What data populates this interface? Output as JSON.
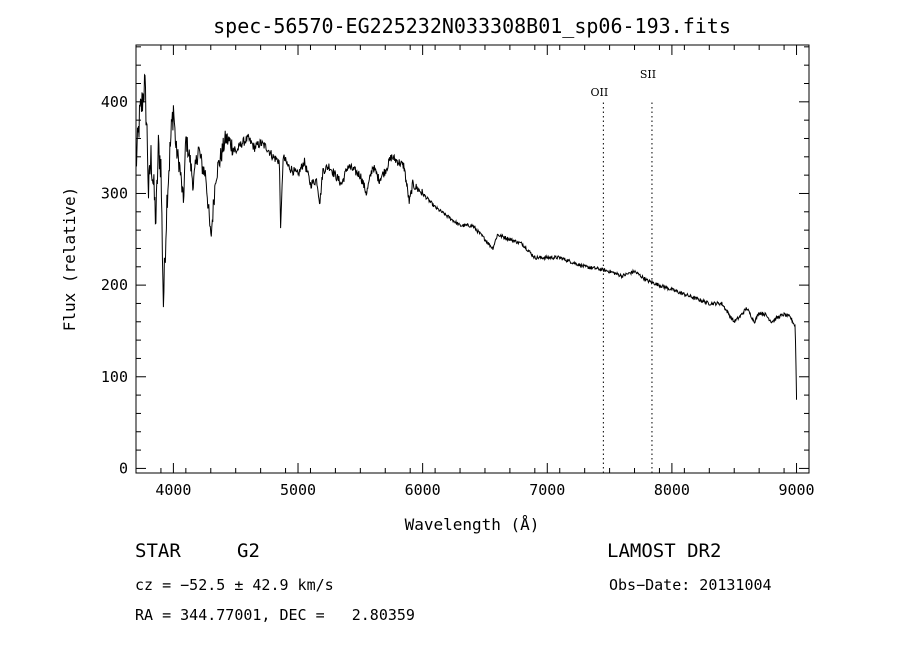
{
  "chart_data": {
    "type": "line",
    "title": "spec-56570-EG225232N033308B01_sp06-193.fits",
    "xlabel": "Wavelength (Å)",
    "ylabel": "Flux (relative)",
    "xlim": [
      3700,
      9100
    ],
    "ylim": [
      -5,
      462
    ],
    "xticks": [
      4000,
      5000,
      6000,
      7000,
      8000,
      9000
    ],
    "yticks": [
      0,
      100,
      200,
      300,
      400
    ],
    "grid": false,
    "line_color": "#000000",
    "series": [
      {
        "x": [
          3700,
          3730,
          3750,
          3770,
          3790,
          3800,
          3820,
          3840,
          3860,
          3880,
          3900,
          3920,
          3950,
          3980,
          4000,
          4020,
          4050,
          4080,
          4100,
          4130,
          4160,
          4200,
          4230,
          4260,
          4300,
          4340,
          4380,
          4420,
          4460,
          4500,
          4550,
          4600,
          4650,
          4700,
          4750,
          4800,
          4850,
          4861,
          4880,
          4920,
          4960,
          5000,
          5050,
          5100,
          5150,
          5175,
          5200,
          5250,
          5300,
          5350,
          5400,
          5450,
          5500,
          5550,
          5600,
          5650,
          5700,
          5750,
          5800,
          5850,
          5893,
          5920,
          6000,
          6100,
          6200,
          6300,
          6400,
          6500,
          6563,
          6600,
          6700,
          6800,
          6900,
          7000,
          7100,
          7200,
          7300,
          7400,
          7500,
          7600,
          7700,
          7800,
          7900,
          8000,
          8100,
          8200,
          8300,
          8400,
          8498,
          8542,
          8600,
          8662,
          8700,
          8750,
          8800,
          8850,
          8900,
          8950,
          8990,
          9000
        ],
        "y": [
          330,
          385,
          400,
          420,
          360,
          300,
          340,
          310,
          270,
          350,
          330,
          180,
          300,
          360,
          395,
          350,
          330,
          290,
          360,
          340,
          310,
          350,
          330,
          320,
          250,
          320,
          340,
          360,
          355,
          345,
          355,
          360,
          350,
          355,
          350,
          340,
          335,
          260,
          340,
          330,
          325,
          320,
          335,
          310,
          315,
          290,
          325,
          330,
          320,
          310,
          330,
          325,
          320,
          300,
          330,
          315,
          325,
          340,
          335,
          330,
          290,
          310,
          300,
          285,
          275,
          265,
          265,
          250,
          240,
          255,
          250,
          245,
          230,
          230,
          230,
          225,
          220,
          218,
          215,
          210,
          215,
          205,
          200,
          195,
          190,
          185,
          180,
          180,
          160,
          165,
          175,
          160,
          170,
          168,
          160,
          165,
          168,
          165,
          155,
          80
        ]
      }
    ],
    "annotations": [
      {
        "label": "OII",
        "x": 7450
      },
      {
        "label": "SII",
        "x": 7840
      }
    ]
  },
  "info": {
    "obj_type": "STAR",
    "obj_class": "G2",
    "survey": "LAMOST DR2",
    "cz": "cz = −52.5 ± 42.9 km/s",
    "obs_date": "Obs−Date: 20131004",
    "radec": "RA = 344.77001, DEC =   2.80359"
  }
}
